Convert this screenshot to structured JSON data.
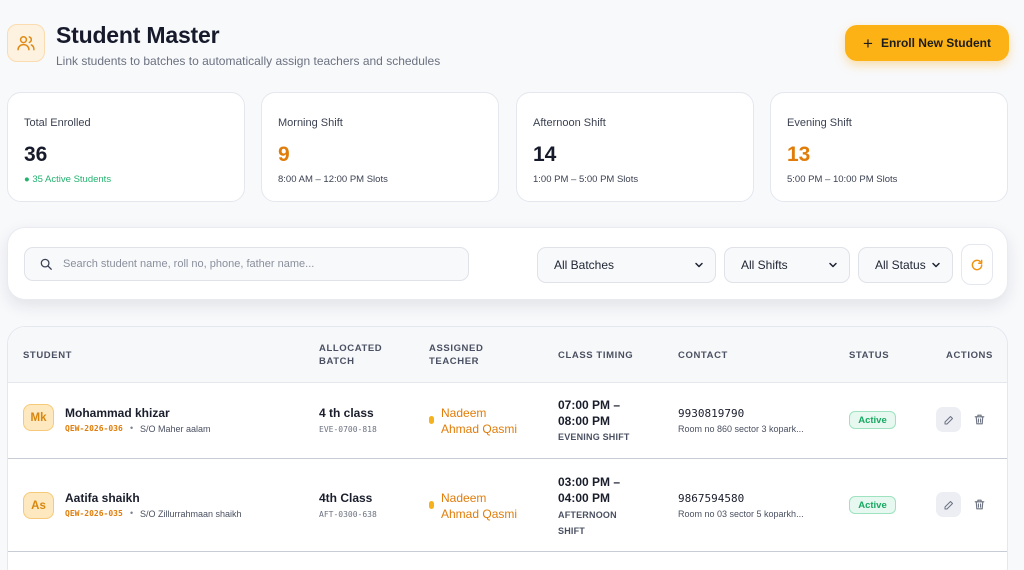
{
  "header": {
    "title": "Student Master",
    "subtitle": "Link students to batches to automatically assign teachers and schedules",
    "icon": "users-icon",
    "enroll_label": "Enroll New Student",
    "enroll_icon": "plus-icon"
  },
  "stats": [
    {
      "label": "Total Enrolled",
      "value": "36",
      "sub": "● 35 Active Students"
    },
    {
      "label": "Morning Shift",
      "value": "9",
      "sub": "8:00 AM – 12:00 PM Slots"
    },
    {
      "label": "Afternoon Shift",
      "value": "14",
      "sub": "1:00 PM – 5:00 PM Slots"
    },
    {
      "label": "Evening Shift",
      "value": "13",
      "sub": "5:00 PM – 10:00 PM Slots"
    }
  ],
  "filters": {
    "search_placeholder": "Search student name, roll no, phone, father name...",
    "batch": "All Batches",
    "shift": "All Shifts",
    "status": "All Status"
  },
  "table": {
    "headers": {
      "student": "STUDENT",
      "batch_line1": "ALLOCATED",
      "batch_line2": "BATCH",
      "teacher_line1": "ASSIGNED",
      "teacher_line2": "TEACHER",
      "timing": "CLASS TIMING",
      "contact": "CONTACT",
      "status": "STATUS",
      "actions": "ACTIONS"
    },
    "rows": [
      {
        "initials": "Mk",
        "name": "Mohammad khizar",
        "roll": "QEW-2026-036",
        "father": "S/O Maher aalam",
        "batch": "4 th class",
        "batch_code": "EVE-0700-818",
        "teacher_line1": "Nadeem",
        "teacher_line2": "Ahmad Qasmi",
        "time_line1": "07:00 PM –",
        "time_line2": "08:00 PM",
        "shift_line1": "EVENING SHIFT",
        "shift_line2": "",
        "phone": "9930819790",
        "address": "Room no 860 sector 3 kopark...",
        "status": "Active"
      },
      {
        "initials": "As",
        "name": "Aatifa shaikh",
        "roll": "QEW-2026-035",
        "father": "S/O Zillurrahmaan shaikh",
        "batch": "4th Class",
        "batch_code": "AFT-0300-638",
        "teacher_line1": "Nadeem",
        "teacher_line2": "Ahmad Qasmi",
        "time_line1": "03:00 PM –",
        "time_line2": "04:00 PM",
        "shift_line1": "AFTERNOON",
        "shift_line2": "SHIFT",
        "phone": "9867594580",
        "address": "Room no 03 sector 5 koparkh...",
        "status": "Active"
      }
    ]
  },
  "colors": {
    "accent": "#fcb215",
    "accent_text": "#e07d0a",
    "active_green": "#18a862"
  }
}
